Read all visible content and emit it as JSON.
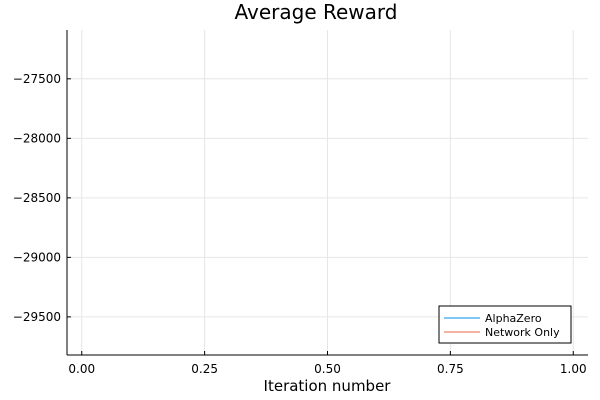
{
  "chart_data": {
    "type": "line",
    "title": "Average Reward",
    "xlabel": "Iteration number",
    "ylabel": "",
    "xlim": [
      -0.03,
      1.03
    ],
    "ylim": [
      -29820,
      -27090
    ],
    "xticks": [
      0.0,
      0.25,
      0.5,
      0.75,
      1.0
    ],
    "xtick_labels": [
      "0.00",
      "0.25",
      "0.50",
      "0.75",
      "1.00"
    ],
    "yticks": [
      -27500,
      -28000,
      -28500,
      -29000,
      -29500
    ],
    "ytick_labels": [
      "−27500",
      "−28000",
      "−28500",
      "−29000",
      "−29500"
    ],
    "grid": true,
    "legend_position": "bottom-right",
    "series": [
      {
        "name": "AlphaZero",
        "color": "#58b4f0",
        "x": [],
        "y": []
      },
      {
        "name": "Network Only",
        "color": "#ef9a86",
        "x": [],
        "y": []
      }
    ]
  }
}
